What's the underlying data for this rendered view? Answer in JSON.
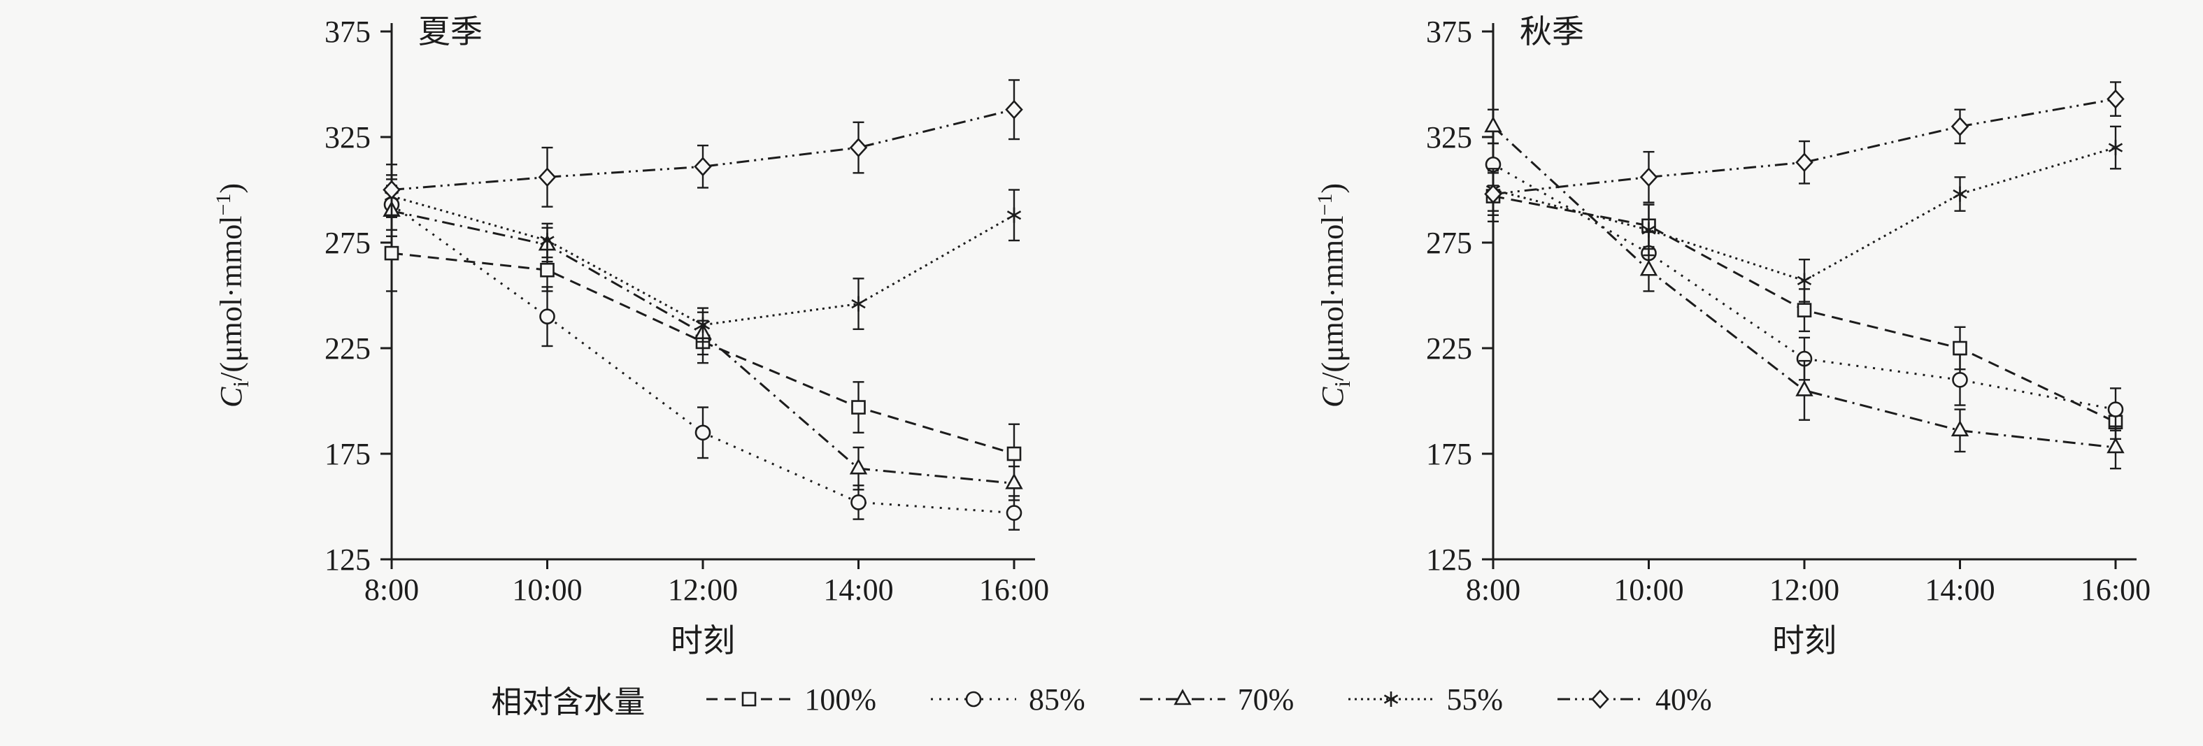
{
  "legend": {
    "title": "相对含水量"
  },
  "axes": {
    "ylabel_parts": {
      "var": "C",
      "sub": "i",
      "unit": "/(μmol·mmol",
      "sup": "−1",
      "close": ")"
    },
    "xlabel": "时刻"
  },
  "chart_data": [
    {
      "type": "line",
      "title": "夏季",
      "xlabel": "时刻",
      "ylabel": "Ci/(μmol·mmol−1)",
      "categories": [
        "8:00",
        "10:00",
        "12:00",
        "14:00",
        "16:00"
      ],
      "ylim": [
        125,
        375
      ],
      "yticks": [
        125,
        175,
        225,
        275,
        325,
        375
      ],
      "grid": false,
      "legend_position": "bottom",
      "series": [
        {
          "name": "100%",
          "marker": "square",
          "dash": "dashed",
          "values": [
            270,
            262,
            228,
            197,
            175
          ],
          "errors": [
            18,
            10,
            10,
            12,
            14
          ]
        },
        {
          "name": "85%",
          "marker": "circle",
          "dash": "dotted",
          "values": [
            293,
            240,
            185,
            152,
            147
          ],
          "errors": [
            12,
            14,
            12,
            8,
            8
          ]
        },
        {
          "name": "70%",
          "marker": "triangle",
          "dash": "dashdot",
          "values": [
            290,
            274,
            232,
            168,
            161
          ],
          "errors": [
            12,
            8,
            10,
            10,
            8
          ]
        },
        {
          "name": "55%",
          "marker": "asterisk",
          "dash": "densedot",
          "values": [
            297,
            276,
            236,
            246,
            288
          ],
          "errors": [
            10,
            8,
            8,
            12,
            12
          ]
        },
        {
          "name": "40%",
          "marker": "diamond",
          "dash": "dashdotdot",
          "values": [
            300,
            306,
            311,
            320,
            338
          ],
          "errors": [
            12,
            14,
            10,
            12,
            14
          ]
        }
      ]
    },
    {
      "type": "line",
      "title": "秋季",
      "xlabel": "时刻",
      "ylabel": "Ci/(μmol·mmol−1)",
      "categories": [
        "8:00",
        "10:00",
        "12:00",
        "14:00",
        "16:00"
      ],
      "ylim": [
        125,
        375
      ],
      "yticks": [
        125,
        175,
        225,
        275,
        325,
        375
      ],
      "grid": false,
      "legend_position": "bottom",
      "series": [
        {
          "name": "100%",
          "marker": "square",
          "dash": "dashed",
          "values": [
            297,
            283,
            243,
            225,
            190
          ],
          "errors": [
            12,
            10,
            10,
            10,
            8
          ]
        },
        {
          "name": "85%",
          "marker": "circle",
          "dash": "dotted",
          "values": [
            312,
            270,
            220,
            210,
            196
          ],
          "errors": [
            10,
            10,
            10,
            12,
            10
          ]
        },
        {
          "name": "70%",
          "marker": "triangle",
          "dash": "dashdot",
          "values": [
            330,
            262,
            205,
            186,
            178
          ],
          "errors": [
            8,
            10,
            14,
            10,
            10
          ]
        },
        {
          "name": "55%",
          "marker": "asterisk",
          "dash": "densedot",
          "values": [
            300,
            281,
            257,
            298,
            320
          ],
          "errors": [
            10,
            12,
            10,
            8,
            10
          ]
        },
        {
          "name": "40%",
          "marker": "diamond",
          "dash": "dashdotdot",
          "values": [
            298,
            306,
            313,
            330,
            343
          ],
          "errors": [
            10,
            12,
            10,
            8,
            8
          ]
        }
      ]
    }
  ]
}
